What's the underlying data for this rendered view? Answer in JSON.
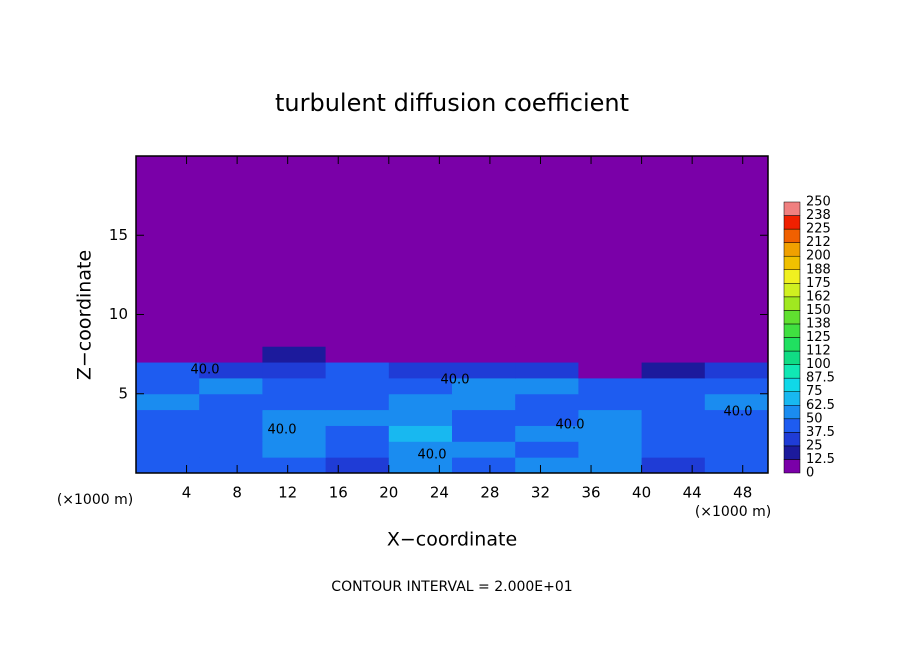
{
  "chart_data": {
    "type": "heatmap",
    "title": "turbulent diffusion coefficient",
    "xlabel": "X−coordinate",
    "ylabel": "Z−coordinate",
    "x_unit_left": "(×1000 m)",
    "x_unit_right": "(×1000 m)",
    "footer": "CONTOUR INTERVAL = 2.000E+01",
    "xlim": [
      0,
      50
    ],
    "ylim": [
      0,
      20
    ],
    "xticks": [
      4,
      8,
      12,
      16,
      20,
      24,
      28,
      32,
      36,
      40,
      44,
      48
    ],
    "yticks": [
      5,
      10,
      15
    ],
    "x_edges": [
      0,
      5,
      10,
      15,
      20,
      25,
      30,
      35,
      40,
      45,
      50
    ],
    "z_edges": [
      0,
      1,
      2,
      3,
      4,
      5,
      6,
      7,
      8,
      20
    ],
    "values": [
      [
        45,
        40,
        45,
        35,
        60,
        40,
        55,
        50,
        35,
        40
      ],
      [
        40,
        45,
        50,
        40,
        55,
        50,
        45,
        60,
        40,
        45
      ],
      [
        40,
        40,
        55,
        45,
        65,
        45,
        50,
        55,
        45,
        40
      ],
      [
        45,
        40,
        50,
        60,
        55,
        45,
        45,
        50,
        45,
        45
      ],
      [
        50,
        45,
        40,
        45,
        50,
        55,
        45,
        40,
        45,
        50
      ],
      [
        45,
        50,
        45,
        40,
        45,
        60,
        50,
        45,
        40,
        40
      ],
      [
        40,
        35,
        30,
        40,
        30,
        30,
        35,
        5,
        20,
        25
      ],
      [
        5,
        5,
        15,
        5,
        10,
        5,
        5,
        0,
        0,
        0
      ],
      [
        0,
        0,
        0,
        0,
        0,
        0,
        0,
        0,
        0,
        0
      ]
    ],
    "levels": [
      0,
      12.5,
      25,
      37.5,
      50,
      62.5,
      75,
      87.5,
      100,
      {
        "value": 112.5,
        "label": "112"
      },
      125,
      {
        "value": 137.5,
        "label": "138"
      },
      150,
      {
        "value": 162.5,
        "label": "162"
      },
      175,
      {
        "value": 187.5,
        "label": "188"
      },
      200,
      {
        "value": 212.5,
        "label": "212"
      },
      225,
      {
        "value": 237.5,
        "label": "238"
      },
      250
    ],
    "colors": [
      "#7a00a8",
      "#1c1a9c",
      "#1f3cd6",
      "#1e5cf0",
      "#1a8cf0",
      "#18b8f0",
      "#10d8e8",
      "#10e8b4",
      "#10dc84",
      "#20e060",
      "#40e040",
      "#60e030",
      "#a0e820",
      "#d0f020",
      "#f0f020",
      "#f0c000",
      "#f0a000",
      "#f06000",
      "#f02000",
      "#f08080"
    ],
    "annotations": [
      "40.0",
      "40.0",
      "40.0",
      "40.0",
      "40.0",
      "40.0"
    ]
  }
}
